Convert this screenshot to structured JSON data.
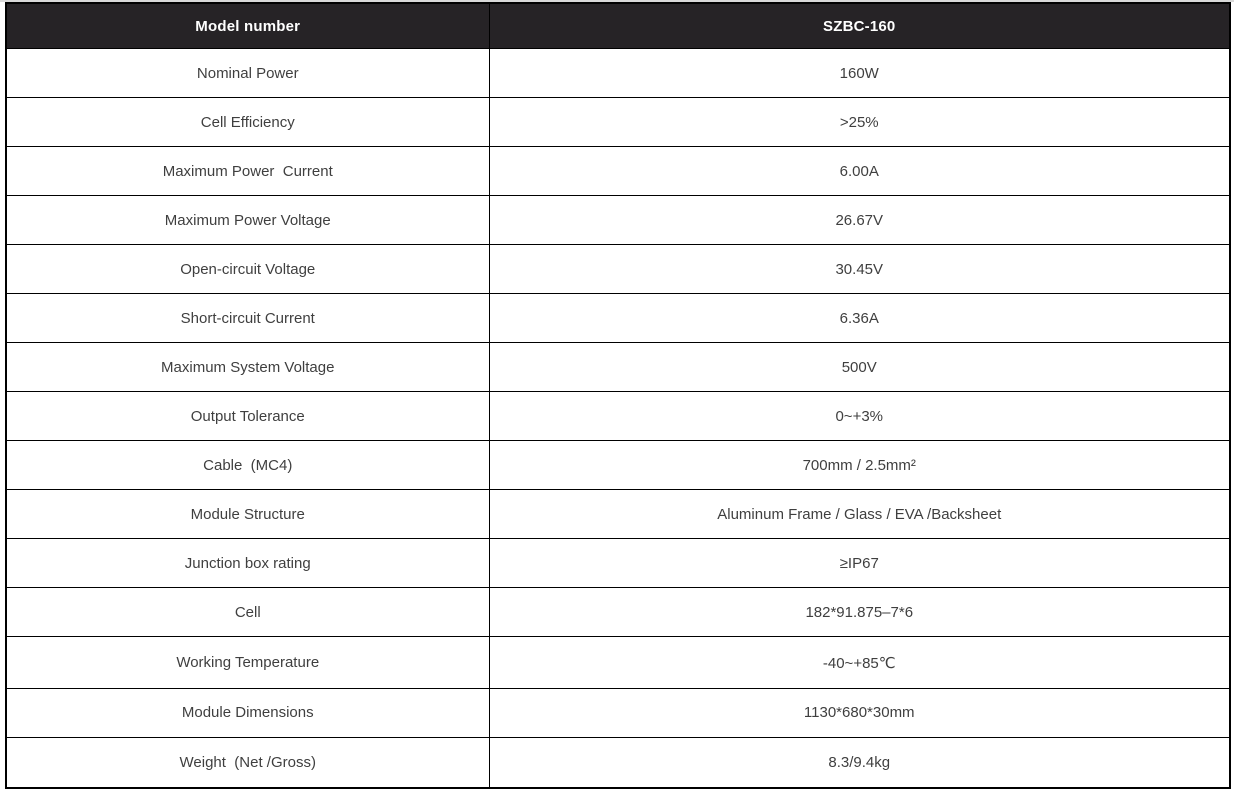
{
  "colors": {
    "header_bg": "#262326",
    "header_text": "#ffffff",
    "body_text": "#3f3f3f",
    "border": "#000000",
    "row_bg": "#ffffff"
  },
  "table": {
    "header": {
      "label": "Model number",
      "value": "SZBC-160"
    },
    "rows": [
      {
        "label": "Nominal Power",
        "value": "160W"
      },
      {
        "label": "Cell Efficiency",
        "value": ">25%"
      },
      {
        "label": "Maximum Power  Current",
        "value": "6.00A"
      },
      {
        "label": "Maximum Power Voltage",
        "value": "26.67V"
      },
      {
        "label": "Open-circuit Voltage",
        "value": "30.45V"
      },
      {
        "label": "Short-circuit Current",
        "value": "6.36A"
      },
      {
        "label": "Maximum System Voltage",
        "value": "500V"
      },
      {
        "label": "Output Tolerance",
        "value": "0~+3%"
      },
      {
        "label": "Cable  (MC4)",
        "value": "700mm / 2.5mm²"
      },
      {
        "label": "Module Structure",
        "value": "Aluminum Frame / Glass / EVA /Backsheet"
      },
      {
        "label": "Junction box rating",
        "value": "≥IP67"
      },
      {
        "label": "Cell",
        "value": "182*91.875–7*6"
      },
      {
        "label": "Working Temperature",
        "value": "-40~+85℃"
      },
      {
        "label": "Module Dimensions",
        "value": "1130*680*30mm"
      },
      {
        "label": "Weight  (Net /Gross)",
        "value": "8.3/9.4kg"
      }
    ]
  }
}
